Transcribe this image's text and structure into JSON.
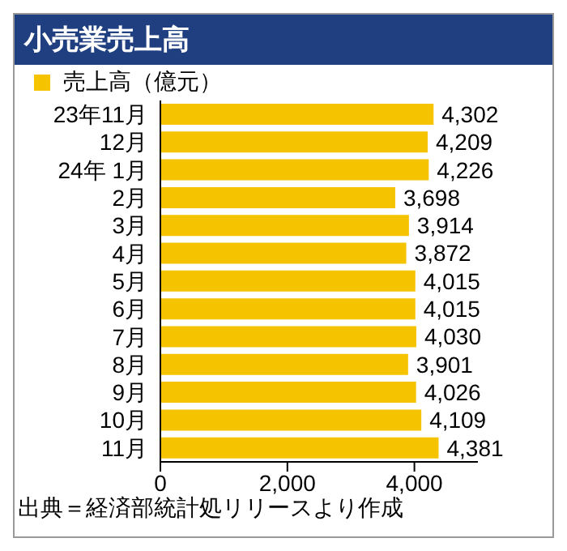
{
  "chart_data": {
    "type": "bar",
    "title": "小売業売上高",
    "orientation": "horizontal",
    "categories": [
      "23年11月",
      "12月",
      "24年 1月",
      "2月",
      "3月",
      "4月",
      "5月",
      "6月",
      "7月",
      "8月",
      "9月",
      "10月",
      "11月"
    ],
    "series": [
      {
        "name": "売上高（億元）",
        "color": "#f5c300",
        "values": [
          4302,
          4209,
          4226,
          3698,
          3914,
          3872,
          4015,
          4015,
          4030,
          3901,
          4026,
          4109,
          4381
        ],
        "value_labels": [
          "4,302",
          "4,209",
          "4,226",
          "3,698",
          "3,914",
          "3,872",
          "4,015",
          "4,015",
          "4,030",
          "3,901",
          "4,026",
          "4,109",
          "4,381"
        ]
      }
    ],
    "xlim": [
      0,
      5000
    ],
    "xticks": [
      0,
      {
        "value": 2000,
        "label": "2,000"
      },
      {
        "value": 4000,
        "label": "4,000"
      }
    ],
    "legend": "top left",
    "grid": false,
    "annotations": [
      "出典＝経済部統計処リリースより作成"
    ]
  }
}
